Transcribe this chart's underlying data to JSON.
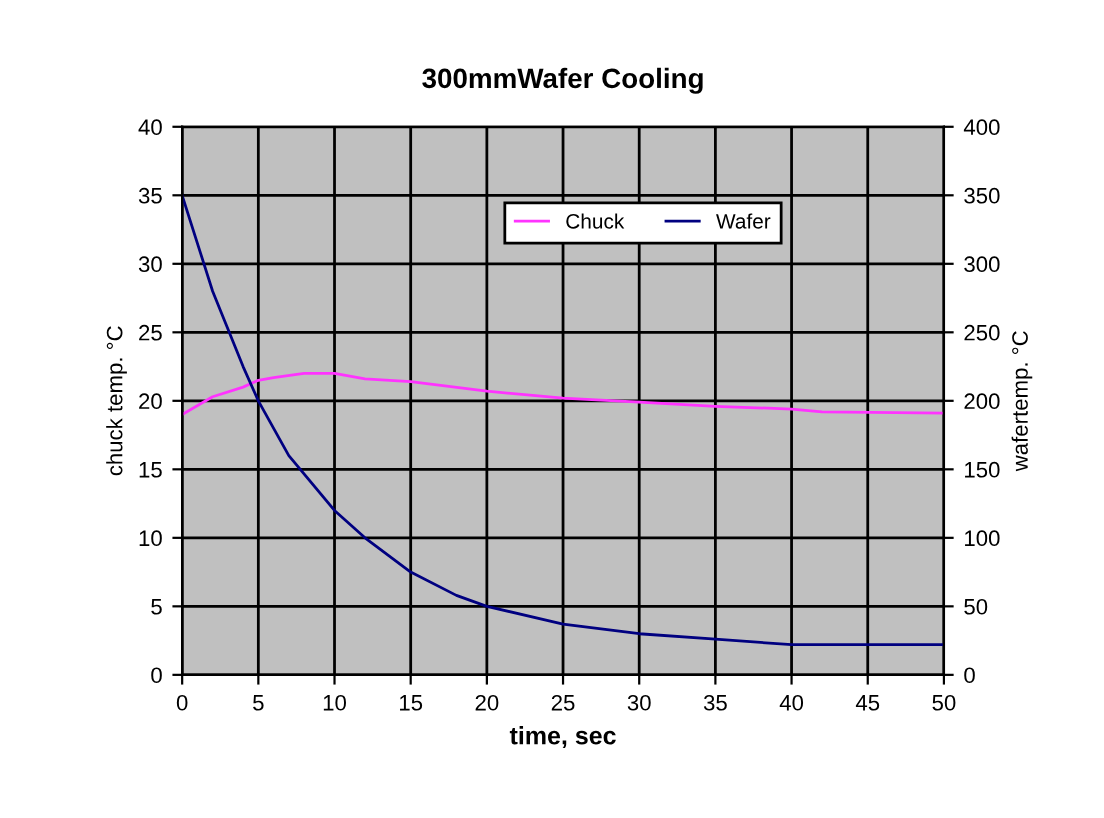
{
  "chart_data": {
    "type": "line",
    "title": "300mmWafer Cooling",
    "xlabel": "time, sec",
    "ylabel": "chuck temp. °C",
    "y2label": "wafertemp. °C",
    "xlim": [
      0,
      50
    ],
    "xticks": [
      0,
      5,
      10,
      15,
      20,
      25,
      30,
      35,
      40,
      45,
      50
    ],
    "ylim": [
      0,
      40
    ],
    "yticks": [
      0,
      5,
      10,
      15,
      20,
      25,
      30,
      35,
      40
    ],
    "y2lim": [
      0,
      400
    ],
    "y2ticks": [
      0,
      50,
      100,
      150,
      200,
      250,
      300,
      350,
      400
    ],
    "grid": true,
    "legend": "top right",
    "marker": "none",
    "line_style": "solid",
    "series": [
      {
        "name": "Chuck",
        "color": "#ff33ff",
        "x": [
          0,
          2,
          4,
          5,
          6,
          8,
          10,
          12,
          15,
          20,
          25,
          30,
          35,
          40,
          42,
          50
        ],
        "values": [
          19,
          20.3,
          21,
          21.5,
          21.7,
          22,
          22,
          21.6,
          21.4,
          20.7,
          20.2,
          19.9,
          19.6,
          19.4,
          19.2,
          19.1
        ]
      },
      {
        "name": "Wafer",
        "color": "#000080",
        "axis": "y2",
        "x": [
          0,
          2,
          4,
          5,
          7,
          10,
          12,
          15,
          18,
          20,
          25,
          30,
          35,
          40,
          45,
          50
        ],
        "values": [
          350,
          280,
          225,
          200,
          160,
          120,
          100,
          75,
          58,
          50,
          37,
          30,
          26,
          22,
          22,
          22
        ]
      }
    ]
  }
}
